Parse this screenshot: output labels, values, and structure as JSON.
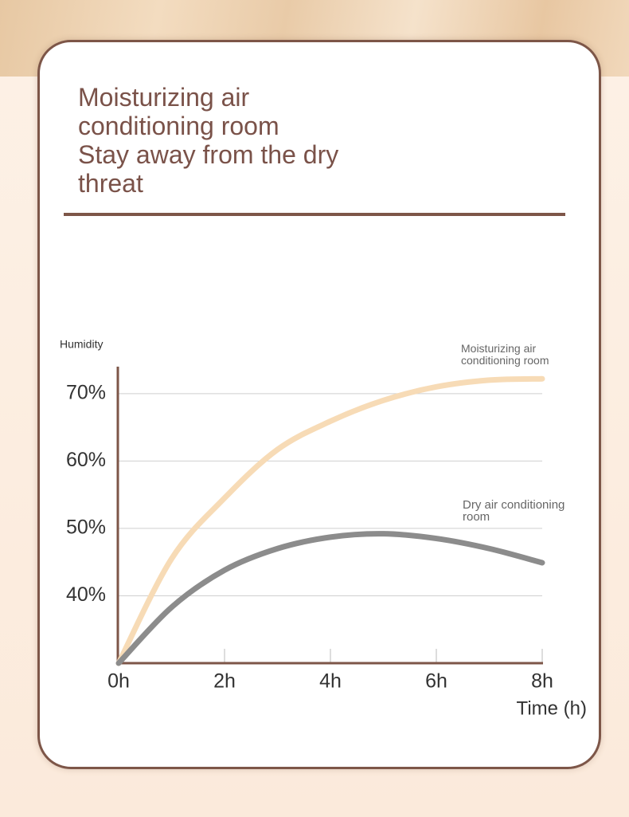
{
  "chart_data": {
    "type": "line",
    "title": "Moisturizing air conditioning room",
    "subtitle": "Stay away from the dry threat",
    "y_label": "Humidity",
    "x_label": "Time (h)",
    "x": [
      0,
      1,
      2,
      3,
      4,
      5,
      6,
      7,
      8
    ],
    "xlim": [
      0,
      8
    ],
    "xticks": [
      {
        "value": 0,
        "label": "0h"
      },
      {
        "value": 2,
        "label": "2h"
      },
      {
        "value": 4,
        "label": "4h"
      },
      {
        "value": 6,
        "label": "6h"
      },
      {
        "value": 8,
        "label": "8h"
      }
    ],
    "ylim": [
      30,
      74
    ],
    "yticks": [
      {
        "value": 40,
        "label": "40%"
      },
      {
        "value": 50,
        "label": "50%"
      },
      {
        "value": 60,
        "label": "60%"
      },
      {
        "value": 70,
        "label": "70%"
      }
    ],
    "grid": true,
    "series": [
      {
        "name": "Moisturizing air conditioning room",
        "color": "#f7dbb6",
        "values": [
          30,
          45.5,
          54.5,
          61.7,
          65.9,
          69,
          71,
          72,
          72.2
        ]
      },
      {
        "name": "Dry air conditioning room",
        "color": "#8c8c8c",
        "values": [
          30,
          38.3,
          43.8,
          47,
          48.7,
          49.2,
          48.5,
          47,
          44.9
        ]
      }
    ]
  }
}
